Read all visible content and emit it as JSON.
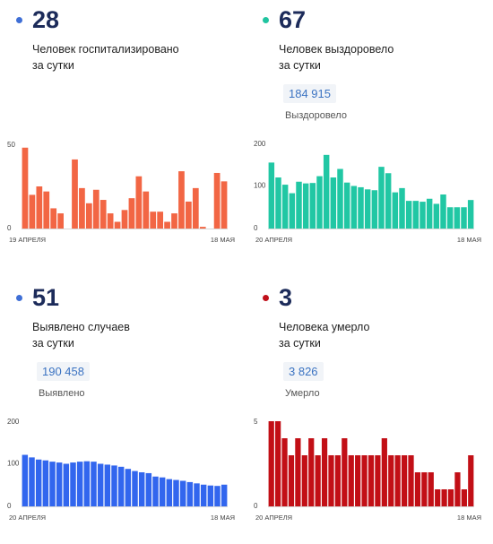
{
  "panels": [
    {
      "dot_color": "#3f6fd6",
      "number": "28",
      "line1": "Человек госпитализировано",
      "line2": "за сутки",
      "total_value": "",
      "total_label": ""
    },
    {
      "dot_color": "#20c4a0",
      "number": "67",
      "line1": "Человек выздоровело",
      "line2": "за сутки",
      "total_value": "184 915",
      "total_label": "Выздоровело"
    },
    {
      "dot_color": "#3f6fd6",
      "number": "51",
      "line1": "Выявлено случаев",
      "line2": "за сутки",
      "total_value": "190 458",
      "total_label": "Выявлено"
    },
    {
      "dot_color": "#c0101a",
      "number": "3",
      "line1": "Человека умерло",
      "line2": "за сутки",
      "total_value": "3 826",
      "total_label": "Умерло"
    }
  ],
  "chart_data": [
    {
      "type": "bar",
      "color": "#f26644",
      "yticks": [
        "50",
        "0"
      ],
      "ylim": [
        0,
        50
      ],
      "xlabel_start": "19 АПРЕЛЯ",
      "xlabel_end": "18 МАЯ",
      "values": [
        48,
        20,
        25,
        22,
        12,
        9,
        0,
        41,
        24,
        15,
        23,
        17,
        9,
        4,
        11,
        18,
        31,
        22,
        10,
        10,
        4,
        9,
        34,
        16,
        24,
        1,
        0,
        33,
        28
      ]
    },
    {
      "type": "bar",
      "color": "#21c7a4",
      "yticks": [
        "200",
        "100",
        "0"
      ],
      "ylim": [
        0,
        200
      ],
      "xlabel_start": "20 АПРЕЛЯ",
      "xlabel_end": "18 МАЯ",
      "values": [
        155,
        120,
        103,
        83,
        110,
        106,
        107,
        123,
        173,
        120,
        140,
        108,
        100,
        97,
        92,
        90,
        145,
        130,
        85,
        95,
        65,
        65,
        63,
        70,
        58,
        80,
        50,
        50,
        50,
        67
      ]
    },
    {
      "type": "bar",
      "color": "#3266ee",
      "yticks": [
        "200",
        "100",
        "0"
      ],
      "ylim": [
        0,
        200
      ],
      "xlabel_start": "20 АПРЕЛЯ",
      "xlabel_end": "18 МАЯ",
      "values": [
        121,
        115,
        110,
        108,
        105,
        103,
        100,
        103,
        105,
        106,
        105,
        100,
        98,
        96,
        93,
        88,
        83,
        80,
        78,
        70,
        68,
        64,
        62,
        60,
        57,
        54,
        51,
        49,
        48,
        51
      ]
    },
    {
      "type": "bar",
      "color": "#c20f16",
      "yticks": [
        "5",
        "0"
      ],
      "ylim": [
        0,
        5
      ],
      "xlabel_start": "20 АПРЕЛЯ",
      "xlabel_end": "18 МАЯ",
      "values": [
        5,
        5,
        4,
        3,
        4,
        3,
        4,
        3,
        4,
        3,
        3,
        4,
        3,
        3,
        3,
        3,
        3,
        4,
        3,
        3,
        3,
        3,
        2,
        2,
        2,
        1,
        1,
        1,
        2,
        1,
        3
      ]
    }
  ]
}
